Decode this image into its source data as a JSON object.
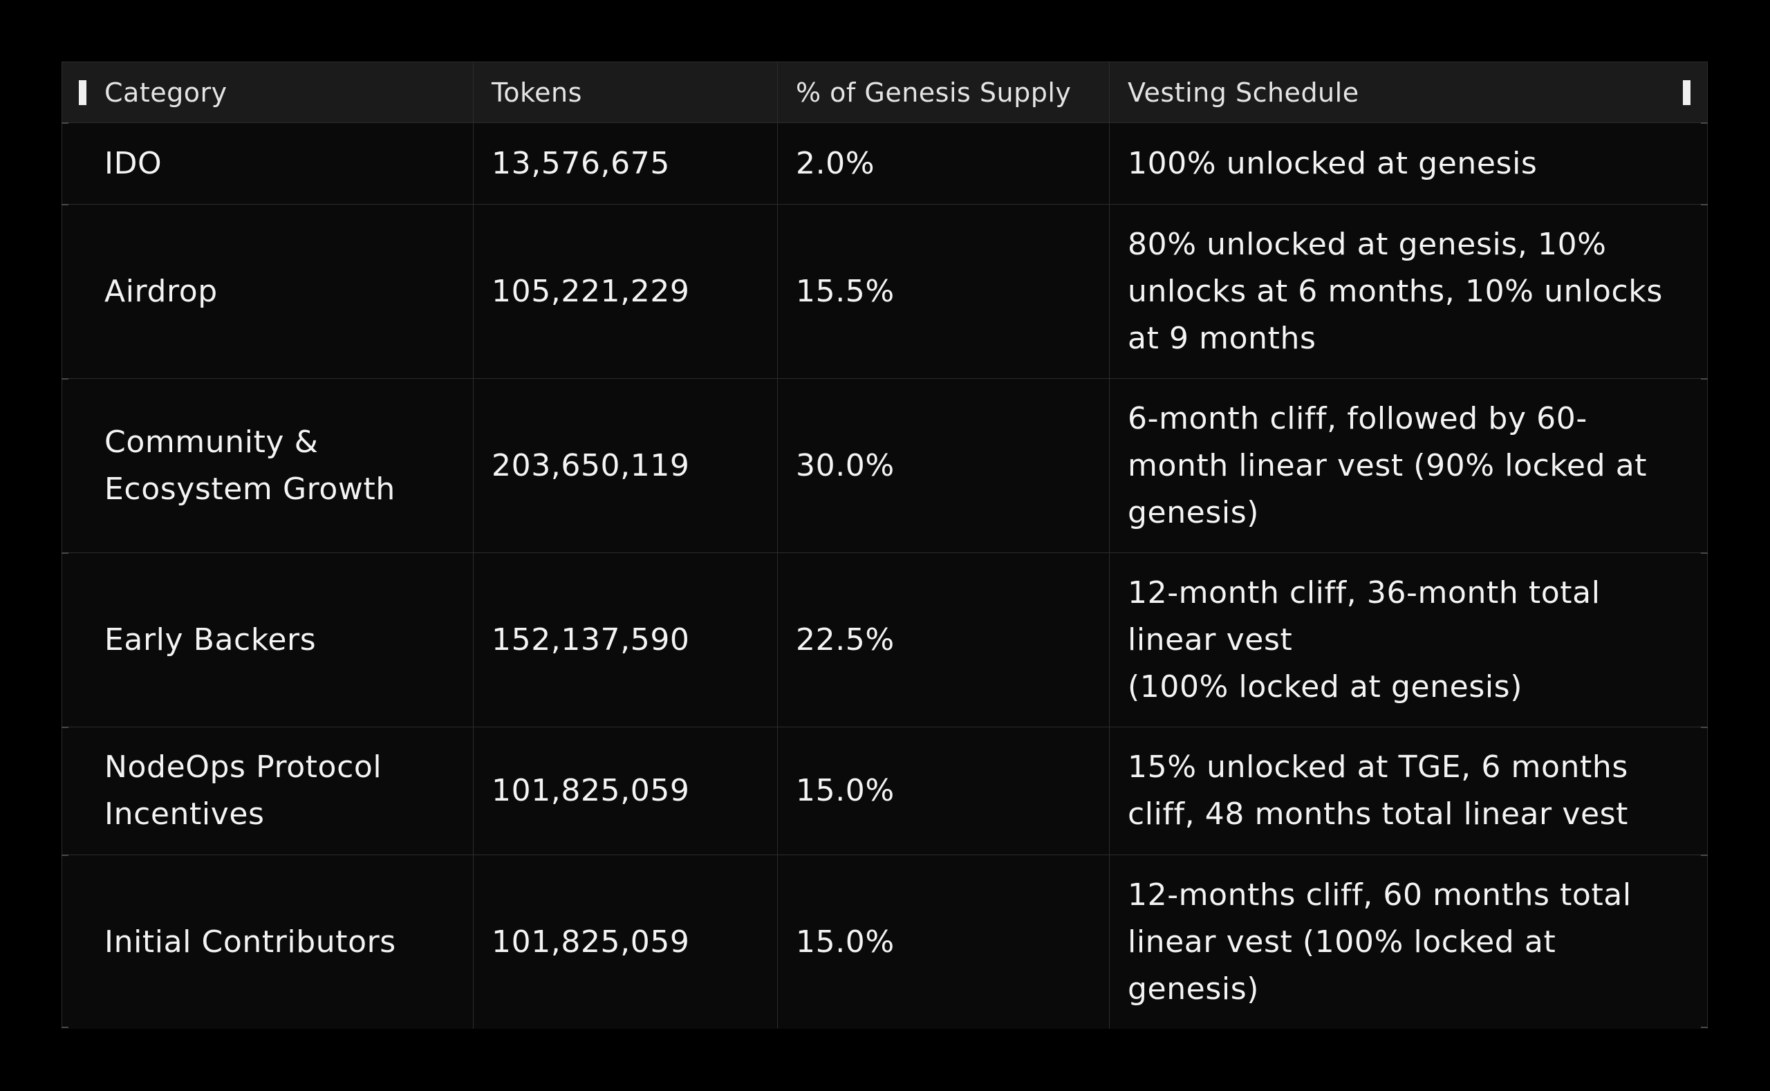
{
  "table": {
    "headers": [
      "Category",
      "Tokens",
      "% of Genesis Supply",
      "Vesting Schedule"
    ],
    "rows": [
      {
        "category": "IDO",
        "tokens": "13,576,675",
        "percent": "2.0%",
        "vesting": "100% unlocked at genesis"
      },
      {
        "category": "Airdrop",
        "tokens": "105,221,229",
        "percent": "15.5%",
        "vesting": "80% unlocked at genesis, 10% unlocks at 6 months, 10% unlocks at 9 months"
      },
      {
        "category": "Community & Ecosystem Growth",
        "tokens": "203,650,119",
        "percent": "30.0%",
        "vesting": "6-month cliff, followed by 60-month linear vest (90% locked at genesis)"
      },
      {
        "category": "Early Backers",
        "tokens": "152,137,590",
        "percent": "22.5%",
        "vesting": "12-month cliff, 36-month total linear vest\n(100% locked at genesis)"
      },
      {
        "category": "NodeOps Protocol Incentives",
        "tokens": "101,825,059",
        "percent": "15.0%",
        "vesting": "15% unlocked at TGE, 6 months cliff, 48 months total linear vest"
      },
      {
        "category": "Initial Contributors",
        "tokens": "101,825,059",
        "percent": "15.0%",
        "vesting": "12-months cliff, 60 months total linear vest (100% locked at genesis)"
      }
    ]
  },
  "colors": {
    "background": "#000000",
    "header_bg": "#1b1b1b",
    "row_bg": "#0a0a0a",
    "border": "#2c2c2c",
    "text": "#f4f4f4"
  }
}
